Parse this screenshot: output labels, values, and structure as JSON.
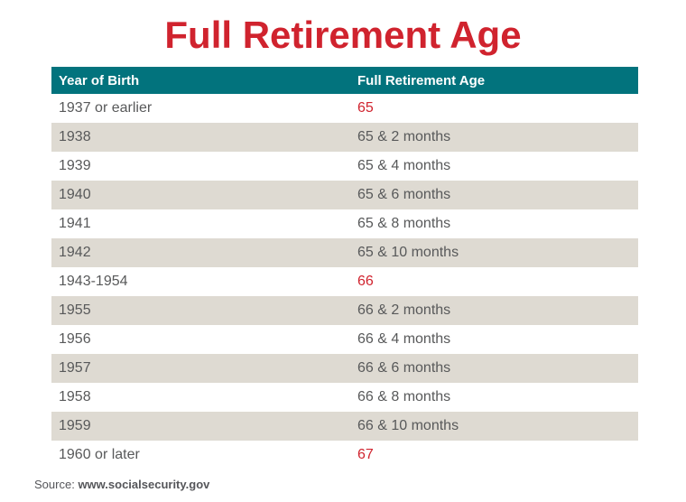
{
  "title": "Full Retirement Age",
  "source": {
    "label": "Source:",
    "url": "www.socialsecurity.gov"
  },
  "colors": {
    "accent_red": "#d0232e",
    "header_teal": "#02737d",
    "row_stripe": "#dedad2",
    "body_text": "#58595a"
  },
  "chart_data": {
    "type": "table",
    "title": "Full Retirement Age",
    "columns": [
      "Year of Birth",
      "Full Retirement Age"
    ],
    "rows": [
      {
        "year": "1937 or earlier",
        "age": "65",
        "highlight": true
      },
      {
        "year": "1938",
        "age": "65 & 2 months",
        "highlight": false
      },
      {
        "year": "1939",
        "age": "65 & 4 months",
        "highlight": false
      },
      {
        "year": "1940",
        "age": "65 & 6 months",
        "highlight": false
      },
      {
        "year": "1941",
        "age": "65 & 8 months",
        "highlight": false
      },
      {
        "year": "1942",
        "age": "65 & 10 months",
        "highlight": false
      },
      {
        "year": "1943-1954",
        "age": "66",
        "highlight": true
      },
      {
        "year": "1955",
        "age": "66 & 2 months",
        "highlight": false
      },
      {
        "year": "1956",
        "age": "66 & 4 months",
        "highlight": false
      },
      {
        "year": "1957",
        "age": "66 & 6 months",
        "highlight": false
      },
      {
        "year": "1958",
        "age": "66 & 8 months",
        "highlight": false
      },
      {
        "year": "1959",
        "age": "66 & 10 months",
        "highlight": false
      },
      {
        "year": "1960 or later",
        "age": "67",
        "highlight": true
      }
    ],
    "layout": {
      "legend": false,
      "grid": false,
      "row_striping": "even-rows-shaded",
      "source": "www.socialsecurity.gov"
    }
  }
}
